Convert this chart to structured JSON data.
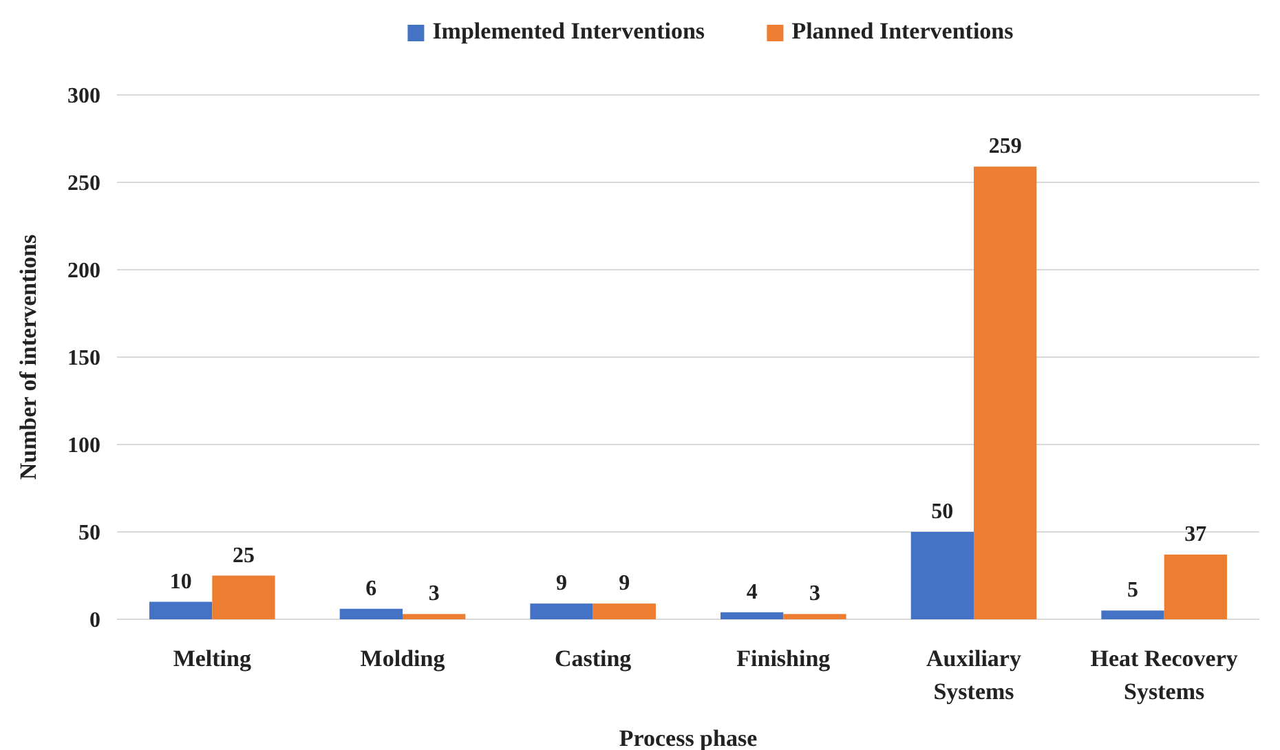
{
  "chart_data": {
    "type": "bar",
    "xlabel": "Process phase",
    "ylabel": "Number of interventions",
    "categories": [
      "Melting",
      "Molding",
      "Casting",
      "Finishing",
      "Auxiliary Systems",
      "Heat Recovery Systems"
    ],
    "series": [
      {
        "name": "Implemented Interventions",
        "color": "#4472c4",
        "values": [
          10,
          6,
          9,
          4,
          50,
          5
        ]
      },
      {
        "name": "Planned Interventions",
        "color": "#ed7d31",
        "values": [
          25,
          3,
          9,
          3,
          259,
          37
        ]
      }
    ],
    "ylim": [
      0,
      300
    ],
    "yticks": [
      0,
      50,
      100,
      150,
      200,
      250,
      300
    ],
    "grid": "y",
    "legend": "top",
    "data_labels": true
  }
}
